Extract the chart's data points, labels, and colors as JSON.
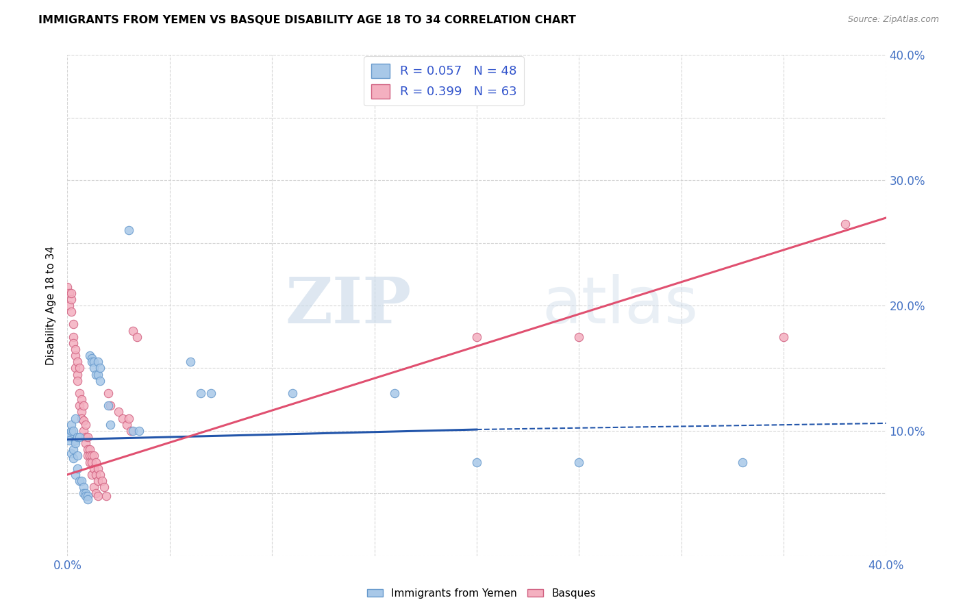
{
  "title": "IMMIGRANTS FROM YEMEN VS BASQUE DISABILITY AGE 18 TO 34 CORRELATION CHART",
  "source": "Source: ZipAtlas.com",
  "ylabel": "Disability Age 18 to 34",
  "xlim": [
    0.0,
    0.4
  ],
  "ylim": [
    0.0,
    0.4
  ],
  "x_ticks": [
    0.0,
    0.05,
    0.1,
    0.15,
    0.2,
    0.25,
    0.3,
    0.35,
    0.4
  ],
  "y_ticks": [
    0.0,
    0.05,
    0.1,
    0.15,
    0.2,
    0.25,
    0.3,
    0.35,
    0.4
  ],
  "y_tick_labels_right": [
    "",
    "",
    "10.0%",
    "",
    "20.0%",
    "",
    "30.0%",
    "",
    "40.0%"
  ],
  "watermark_zip": "ZIP",
  "watermark_atlas": "atlas",
  "scatter_blue": {
    "color": "#a8c8e8",
    "edge_color": "#6699cc",
    "alpha": 0.85,
    "size": 80,
    "points": [
      [
        0.0,
        0.098
      ],
      [
        0.001,
        0.095
      ],
      [
        0.001,
        0.092
      ],
      [
        0.002,
        0.1
      ],
      [
        0.002,
        0.082
      ],
      [
        0.002,
        0.105
      ],
      [
        0.003,
        0.085
      ],
      [
        0.003,
        0.1
      ],
      [
        0.003,
        0.078
      ],
      [
        0.004,
        0.092
      ],
      [
        0.004,
        0.09
      ],
      [
        0.004,
        0.11
      ],
      [
        0.004,
        0.065
      ],
      [
        0.005,
        0.095
      ],
      [
        0.005,
        0.08
      ],
      [
        0.005,
        0.07
      ],
      [
        0.006,
        0.095
      ],
      [
        0.006,
        0.06
      ],
      [
        0.007,
        0.06
      ],
      [
        0.008,
        0.055
      ],
      [
        0.008,
        0.05
      ],
      [
        0.009,
        0.05
      ],
      [
        0.009,
        0.048
      ],
      [
        0.01,
        0.048
      ],
      [
        0.01,
        0.045
      ],
      [
        0.011,
        0.16
      ],
      [
        0.012,
        0.158
      ],
      [
        0.012,
        0.155
      ],
      [
        0.013,
        0.155
      ],
      [
        0.013,
        0.15
      ],
      [
        0.014,
        0.145
      ],
      [
        0.015,
        0.155
      ],
      [
        0.015,
        0.145
      ],
      [
        0.016,
        0.15
      ],
      [
        0.016,
        0.14
      ],
      [
        0.02,
        0.12
      ],
      [
        0.021,
        0.105
      ],
      [
        0.03,
        0.26
      ],
      [
        0.032,
        0.1
      ],
      [
        0.035,
        0.1
      ],
      [
        0.06,
        0.155
      ],
      [
        0.065,
        0.13
      ],
      [
        0.07,
        0.13
      ],
      [
        0.11,
        0.13
      ],
      [
        0.16,
        0.13
      ],
      [
        0.2,
        0.075
      ],
      [
        0.25,
        0.075
      ],
      [
        0.33,
        0.075
      ]
    ]
  },
  "scatter_pink": {
    "color": "#f4b0c0",
    "edge_color": "#d06080",
    "alpha": 0.85,
    "size": 80,
    "points": [
      [
        0.0,
        0.215
      ],
      [
        0.001,
        0.21
      ],
      [
        0.001,
        0.2
      ],
      [
        0.002,
        0.205
      ],
      [
        0.002,
        0.195
      ],
      [
        0.002,
        0.21
      ],
      [
        0.003,
        0.185
      ],
      [
        0.003,
        0.175
      ],
      [
        0.003,
        0.17
      ],
      [
        0.004,
        0.16
      ],
      [
        0.004,
        0.15
      ],
      [
        0.004,
        0.165
      ],
      [
        0.005,
        0.155
      ],
      [
        0.005,
        0.145
      ],
      [
        0.005,
        0.14
      ],
      [
        0.006,
        0.15
      ],
      [
        0.006,
        0.13
      ],
      [
        0.006,
        0.12
      ],
      [
        0.007,
        0.125
      ],
      [
        0.007,
        0.115
      ],
      [
        0.007,
        0.11
      ],
      [
        0.008,
        0.12
      ],
      [
        0.008,
        0.108
      ],
      [
        0.008,
        0.1
      ],
      [
        0.009,
        0.105
      ],
      [
        0.009,
        0.095
      ],
      [
        0.009,
        0.09
      ],
      [
        0.01,
        0.095
      ],
      [
        0.01,
        0.085
      ],
      [
        0.01,
        0.08
      ],
      [
        0.011,
        0.085
      ],
      [
        0.011,
        0.08
      ],
      [
        0.011,
        0.075
      ],
      [
        0.012,
        0.08
      ],
      [
        0.012,
        0.075
      ],
      [
        0.012,
        0.065
      ],
      [
        0.013,
        0.08
      ],
      [
        0.013,
        0.07
      ],
      [
        0.013,
        0.055
      ],
      [
        0.014,
        0.075
      ],
      [
        0.014,
        0.065
      ],
      [
        0.014,
        0.05
      ],
      [
        0.015,
        0.07
      ],
      [
        0.015,
        0.06
      ],
      [
        0.015,
        0.048
      ],
      [
        0.016,
        0.065
      ],
      [
        0.017,
        0.06
      ],
      [
        0.018,
        0.055
      ],
      [
        0.019,
        0.048
      ],
      [
        0.02,
        0.13
      ],
      [
        0.021,
        0.12
      ],
      [
        0.025,
        0.115
      ],
      [
        0.027,
        0.11
      ],
      [
        0.029,
        0.105
      ],
      [
        0.03,
        0.11
      ],
      [
        0.031,
        0.1
      ],
      [
        0.032,
        0.18
      ],
      [
        0.034,
        0.175
      ],
      [
        0.2,
        0.175
      ],
      [
        0.25,
        0.175
      ],
      [
        0.35,
        0.175
      ],
      [
        0.38,
        0.265
      ]
    ]
  },
  "trend_blue_solid": {
    "color": "#2255aa",
    "x_start": 0.0,
    "y_start": 0.093,
    "x_end": 0.2,
    "y_end": 0.101,
    "linestyle": "solid",
    "linewidth": 2.2
  },
  "trend_blue_dashed": {
    "color": "#2255aa",
    "x_start": 0.2,
    "y_start": 0.101,
    "x_end": 0.4,
    "y_end": 0.106,
    "linestyle": "dashed",
    "linewidth": 1.5
  },
  "trend_pink": {
    "color": "#e05070",
    "x_start": 0.0,
    "y_start": 0.065,
    "x_end": 0.4,
    "y_end": 0.27,
    "linestyle": "solid",
    "linewidth": 2.2
  },
  "background_color": "#ffffff",
  "grid_color": "#cccccc",
  "grid_alpha": 0.8
}
